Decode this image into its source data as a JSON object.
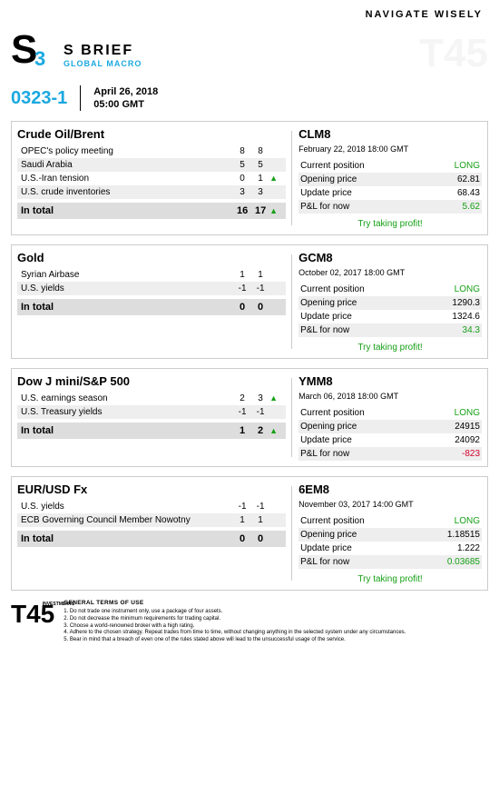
{
  "nav": {
    "text": "NAVIGATE  WISELY"
  },
  "brand": {
    "title": "S BRIEF",
    "sub": "GLOBAL MACRO",
    "accent": "#1ba8e0"
  },
  "id": "0323-1",
  "date": "April 26, 2018",
  "time": "05:00 GMT",
  "sections": [
    {
      "title": "Crude Oil/Brent",
      "rows": [
        {
          "label": "OPEC's policy meeting",
          "v1": "8",
          "v2": "8",
          "arr": ""
        },
        {
          "label": "Saudi Arabia",
          "v1": "5",
          "v2": "5",
          "arr": ""
        },
        {
          "label": "U.S.-Iran tension",
          "v1": "0",
          "v2": "1",
          "arr": "▲"
        },
        {
          "label": "U.S. crude inventories",
          "v1": "3",
          "v2": "3",
          "arr": ""
        }
      ],
      "total": {
        "label": "In total",
        "v1": "16",
        "v2": "17",
        "arr": "▲"
      },
      "position": {
        "ticker": "CLM8",
        "date": "February 22, 2018 18:00 GMT",
        "rows": [
          {
            "label": "Current position",
            "val": "LONG",
            "cls": "green"
          },
          {
            "label": "Opening price",
            "val": "62.81",
            "cls": ""
          },
          {
            "label": "Update price",
            "val": "68.43",
            "cls": ""
          },
          {
            "label": "P&L for now",
            "val": "5.62",
            "cls": "green"
          }
        ],
        "cta": "Try taking profit!"
      }
    },
    {
      "title": "Gold",
      "rows": [
        {
          "label": "Syrian Airbase",
          "v1": "1",
          "v2": "1",
          "arr": ""
        },
        {
          "label": "U.S. yields",
          "v1": "-1",
          "v2": "-1",
          "arr": ""
        }
      ],
      "total": {
        "label": "In total",
        "v1": "0",
        "v2": "0",
        "arr": ""
      },
      "position": {
        "ticker": "GCM8",
        "date": "October 02, 2017 18:00 GMT",
        "rows": [
          {
            "label": "Current position",
            "val": "LONG",
            "cls": "green"
          },
          {
            "label": "Opening price",
            "val": "1290.3",
            "cls": ""
          },
          {
            "label": "Update price",
            "val": "1324.6",
            "cls": ""
          },
          {
            "label": "P&L for now",
            "val": "34.3",
            "cls": "green"
          }
        ],
        "cta": "Try taking profit!"
      }
    },
    {
      "title": "Dow J mini/S&P 500",
      "rows": [
        {
          "label": "U.S. earnings season",
          "v1": "2",
          "v2": "3",
          "arr": "▲"
        },
        {
          "label": "U.S. Treasury yields",
          "v1": "-1",
          "v2": "-1",
          "arr": ""
        }
      ],
      "total": {
        "label": "In total",
        "v1": "1",
        "v2": "2",
        "arr": "▲"
      },
      "position": {
        "ticker": "YMM8",
        "date": "March 06, 2018 18:00 GMT",
        "rows": [
          {
            "label": "Current position",
            "val": "LONG",
            "cls": "green"
          },
          {
            "label": "Opening price",
            "val": "24915",
            "cls": ""
          },
          {
            "label": "Update price",
            "val": "24092",
            "cls": ""
          },
          {
            "label": "P&L for now",
            "val": "-823",
            "cls": "red"
          }
        ],
        "cta": ""
      }
    },
    {
      "title": "EUR/USD Fx",
      "rows": [
        {
          "label": "U.S. yields",
          "v1": "-1",
          "v2": "-1",
          "arr": ""
        },
        {
          "label": "ECB Governing Council Member Nowotny",
          "v1": "1",
          "v2": "1",
          "arr": ""
        }
      ],
      "total": {
        "label": "In total",
        "v1": "0",
        "v2": "0",
        "arr": ""
      },
      "position": {
        "ticker": "6EM8",
        "date": "November 03, 2017 14:00 GMT",
        "rows": [
          {
            "label": "Current position",
            "val": "LONG",
            "cls": "green"
          },
          {
            "label": "Opening price",
            "val": "1.18515",
            "cls": ""
          },
          {
            "label": "Update price",
            "val": "1.222",
            "cls": ""
          },
          {
            "label": "P&L for now",
            "val": "0.03685",
            "cls": "green"
          }
        ],
        "cta": "Try taking profit!"
      }
    }
  ],
  "footer": {
    "logo": "T45",
    "logosub": "INVESTMENTS",
    "terms_title": "GENERAL TERMS OF USE",
    "terms": [
      "1. Do not trade one instrument only, use a package of four assets.",
      "2. Do not decrease the minimum requirements for trading capital.",
      "3. Choose a world-renowned broker with a high rating.",
      "4. Adhere to the chosen strategy. Repeat trades from time to time, without changing anything in the selected system under any circumstances.",
      "5. Bear in mind that a breach of even one of the rules stated above will lead to the unsuccessful usage of the service."
    ]
  }
}
